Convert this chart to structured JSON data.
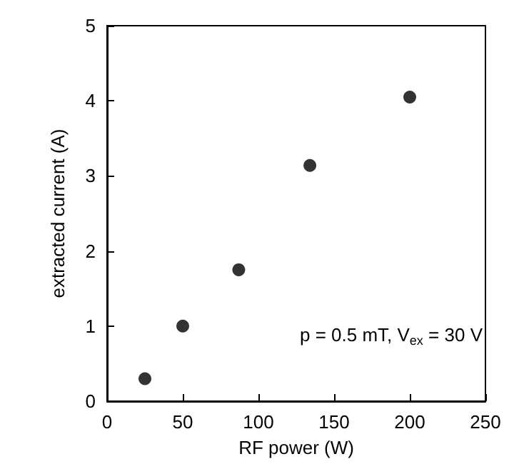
{
  "chart_data": {
    "type": "scatter",
    "xlabel": "RF power (W)",
    "ylabel": "extracted current (A)",
    "x": [
      25,
      50,
      87,
      134,
      200
    ],
    "series": [
      {
        "color": "#000000",
        "values": [
          0.3,
          1.0,
          1.75,
          3.14,
          4.05
        ]
      }
    ],
    "xlim": [
      0,
      250
    ],
    "xticks": [
      0,
      50,
      100,
      150,
      200,
      250
    ],
    "ylim": [
      0,
      5
    ],
    "yticks": [
      0,
      1,
      2,
      3,
      4,
      5
    ],
    "grid": false,
    "marker": "circle",
    "annotations": [
      "p = 0.5 mT, V$_{ex}$ = 30 V"
    ]
  }
}
